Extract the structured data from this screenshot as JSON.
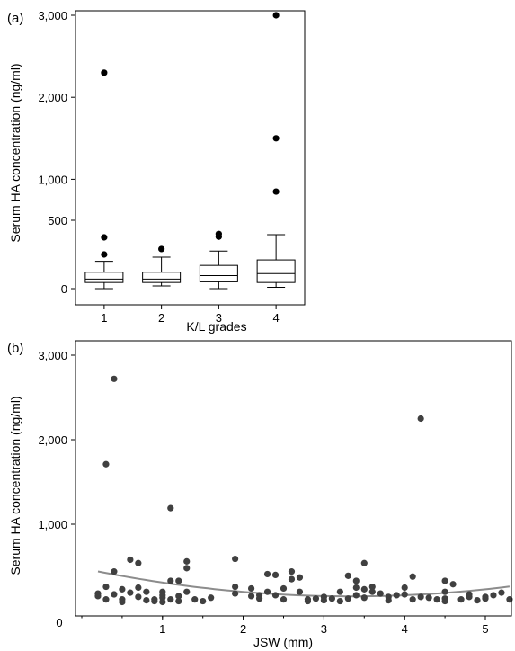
{
  "chart_data": [
    {
      "type": "box",
      "panel_label": "(a)",
      "xlabel": "K/L grades",
      "ylabel": "Serum HA concentration (ng/ml)",
      "categories": [
        "1",
        "2",
        "3",
        "4"
      ],
      "y_ticks": [
        "0",
        "500",
        "1,000",
        "2,000",
        "3,000"
      ],
      "y_scale": "piecewise: 0–500 linear, 500–3,000 compressed",
      "boxes": [
        {
          "category": "1",
          "whisker_low": 0,
          "q1": 45,
          "median": 70,
          "q3": 120,
          "whisker_high": 200,
          "outliers": [
            250,
            375,
            2300
          ]
        },
        {
          "category": "2",
          "whisker_low": 20,
          "q1": 45,
          "median": 70,
          "q3": 120,
          "whisker_high": 230,
          "outliers": [
            290
          ]
        },
        {
          "category": "3",
          "whisker_low": 0,
          "q1": 50,
          "median": 95,
          "q3": 170,
          "whisker_high": 275,
          "outliers": [
            380,
            400
          ]
        },
        {
          "category": "4",
          "whisker_low": 10,
          "q1": 45,
          "median": 110,
          "q3": 210,
          "whisker_high": 395,
          "outliers": [
            850,
            1500,
            3000
          ]
        }
      ]
    },
    {
      "type": "scatter",
      "panel_label": "(b)",
      "xlabel": "JSW (mm)",
      "ylabel": "Serum HA concentration (ng/ml)",
      "x_ticks": [
        "0",
        "1",
        "2",
        "3",
        "4",
        "5"
      ],
      "y_ticks": [
        "1,000",
        "2,000",
        "3,000"
      ],
      "xlim": [
        0,
        5.3
      ],
      "ylim": [
        -80,
        3000
      ],
      "trend_line": {
        "type": "quadratic fit",
        "a": 480,
        "b": -200,
        "c": 30
      },
      "points": [
        {
          "x": 0.2,
          "y": 150
        },
        {
          "x": 0.2,
          "y": 180
        },
        {
          "x": 0.3,
          "y": 1710
        },
        {
          "x": 0.3,
          "y": 260
        },
        {
          "x": 0.3,
          "y": 110
        },
        {
          "x": 0.4,
          "y": 2720
        },
        {
          "x": 0.4,
          "y": 440
        },
        {
          "x": 0.4,
          "y": 170
        },
        {
          "x": 0.5,
          "y": 230
        },
        {
          "x": 0.5,
          "y": 110
        },
        {
          "x": 0.5,
          "y": 80
        },
        {
          "x": 0.6,
          "y": 580
        },
        {
          "x": 0.6,
          "y": 190
        },
        {
          "x": 0.7,
          "y": 540
        },
        {
          "x": 0.7,
          "y": 250
        },
        {
          "x": 0.7,
          "y": 140
        },
        {
          "x": 0.8,
          "y": 100
        },
        {
          "x": 0.8,
          "y": 200
        },
        {
          "x": 0.9,
          "y": 110
        },
        {
          "x": 0.9,
          "y": 90
        },
        {
          "x": 1.0,
          "y": 160
        },
        {
          "x": 1.0,
          "y": 80
        },
        {
          "x": 1.0,
          "y": 130
        },
        {
          "x": 1.0,
          "y": 200
        },
        {
          "x": 1.1,
          "y": 1190
        },
        {
          "x": 1.1,
          "y": 110
        },
        {
          "x": 1.1,
          "y": 330
        },
        {
          "x": 1.2,
          "y": 150
        },
        {
          "x": 1.2,
          "y": 330
        },
        {
          "x": 1.2,
          "y": 90
        },
        {
          "x": 1.3,
          "y": 560
        },
        {
          "x": 1.3,
          "y": 480
        },
        {
          "x": 1.3,
          "y": 200
        },
        {
          "x": 1.4,
          "y": 110
        },
        {
          "x": 1.5,
          "y": 90
        },
        {
          "x": 1.6,
          "y": 130
        },
        {
          "x": 1.9,
          "y": 590
        },
        {
          "x": 1.9,
          "y": 260
        },
        {
          "x": 1.9,
          "y": 180
        },
        {
          "x": 2.1,
          "y": 150
        },
        {
          "x": 2.1,
          "y": 240
        },
        {
          "x": 2.2,
          "y": 120
        },
        {
          "x": 2.2,
          "y": 160
        },
        {
          "x": 2.3,
          "y": 410
        },
        {
          "x": 2.3,
          "y": 200
        },
        {
          "x": 2.4,
          "y": 400
        },
        {
          "x": 2.4,
          "y": 160
        },
        {
          "x": 2.5,
          "y": 110
        },
        {
          "x": 2.5,
          "y": 240
        },
        {
          "x": 2.6,
          "y": 440
        },
        {
          "x": 2.6,
          "y": 350
        },
        {
          "x": 2.7,
          "y": 200
        },
        {
          "x": 2.7,
          "y": 370
        },
        {
          "x": 2.8,
          "y": 110
        },
        {
          "x": 2.8,
          "y": 90
        },
        {
          "x": 2.9,
          "y": 120
        },
        {
          "x": 3.0,
          "y": 100
        },
        {
          "x": 3.0,
          "y": 140
        },
        {
          "x": 3.1,
          "y": 120
        },
        {
          "x": 3.2,
          "y": 90
        },
        {
          "x": 3.2,
          "y": 200
        },
        {
          "x": 3.3,
          "y": 390
        },
        {
          "x": 3.3,
          "y": 120
        },
        {
          "x": 3.4,
          "y": 330
        },
        {
          "x": 3.4,
          "y": 250
        },
        {
          "x": 3.4,
          "y": 160
        },
        {
          "x": 3.5,
          "y": 540
        },
        {
          "x": 3.5,
          "y": 230
        },
        {
          "x": 3.5,
          "y": 130
        },
        {
          "x": 3.6,
          "y": 200
        },
        {
          "x": 3.6,
          "y": 260
        },
        {
          "x": 3.7,
          "y": 180
        },
        {
          "x": 3.8,
          "y": 140
        },
        {
          "x": 3.8,
          "y": 100
        },
        {
          "x": 3.9,
          "y": 160
        },
        {
          "x": 4.0,
          "y": 250
        },
        {
          "x": 4.0,
          "y": 170
        },
        {
          "x": 4.1,
          "y": 380
        },
        {
          "x": 4.1,
          "y": 110
        },
        {
          "x": 4.2,
          "y": 2250
        },
        {
          "x": 4.2,
          "y": 140
        },
        {
          "x": 4.3,
          "y": 130
        },
        {
          "x": 4.4,
          "y": 110
        },
        {
          "x": 4.5,
          "y": 330
        },
        {
          "x": 4.5,
          "y": 200
        },
        {
          "x": 4.5,
          "y": 120
        },
        {
          "x": 4.5,
          "y": 90
        },
        {
          "x": 4.6,
          "y": 290
        },
        {
          "x": 4.7,
          "y": 110
        },
        {
          "x": 4.8,
          "y": 140
        },
        {
          "x": 4.8,
          "y": 170
        },
        {
          "x": 4.9,
          "y": 100
        },
        {
          "x": 5.0,
          "y": 140
        },
        {
          "x": 5.0,
          "y": 120
        },
        {
          "x": 5.1,
          "y": 160
        },
        {
          "x": 5.2,
          "y": 190
        },
        {
          "x": 5.3,
          "y": 110
        }
      ]
    }
  ],
  "colors": {
    "points": "#404040",
    "trend": "#8c8c8c",
    "axis": "#000000",
    "box_fill": "#ffffff"
  }
}
